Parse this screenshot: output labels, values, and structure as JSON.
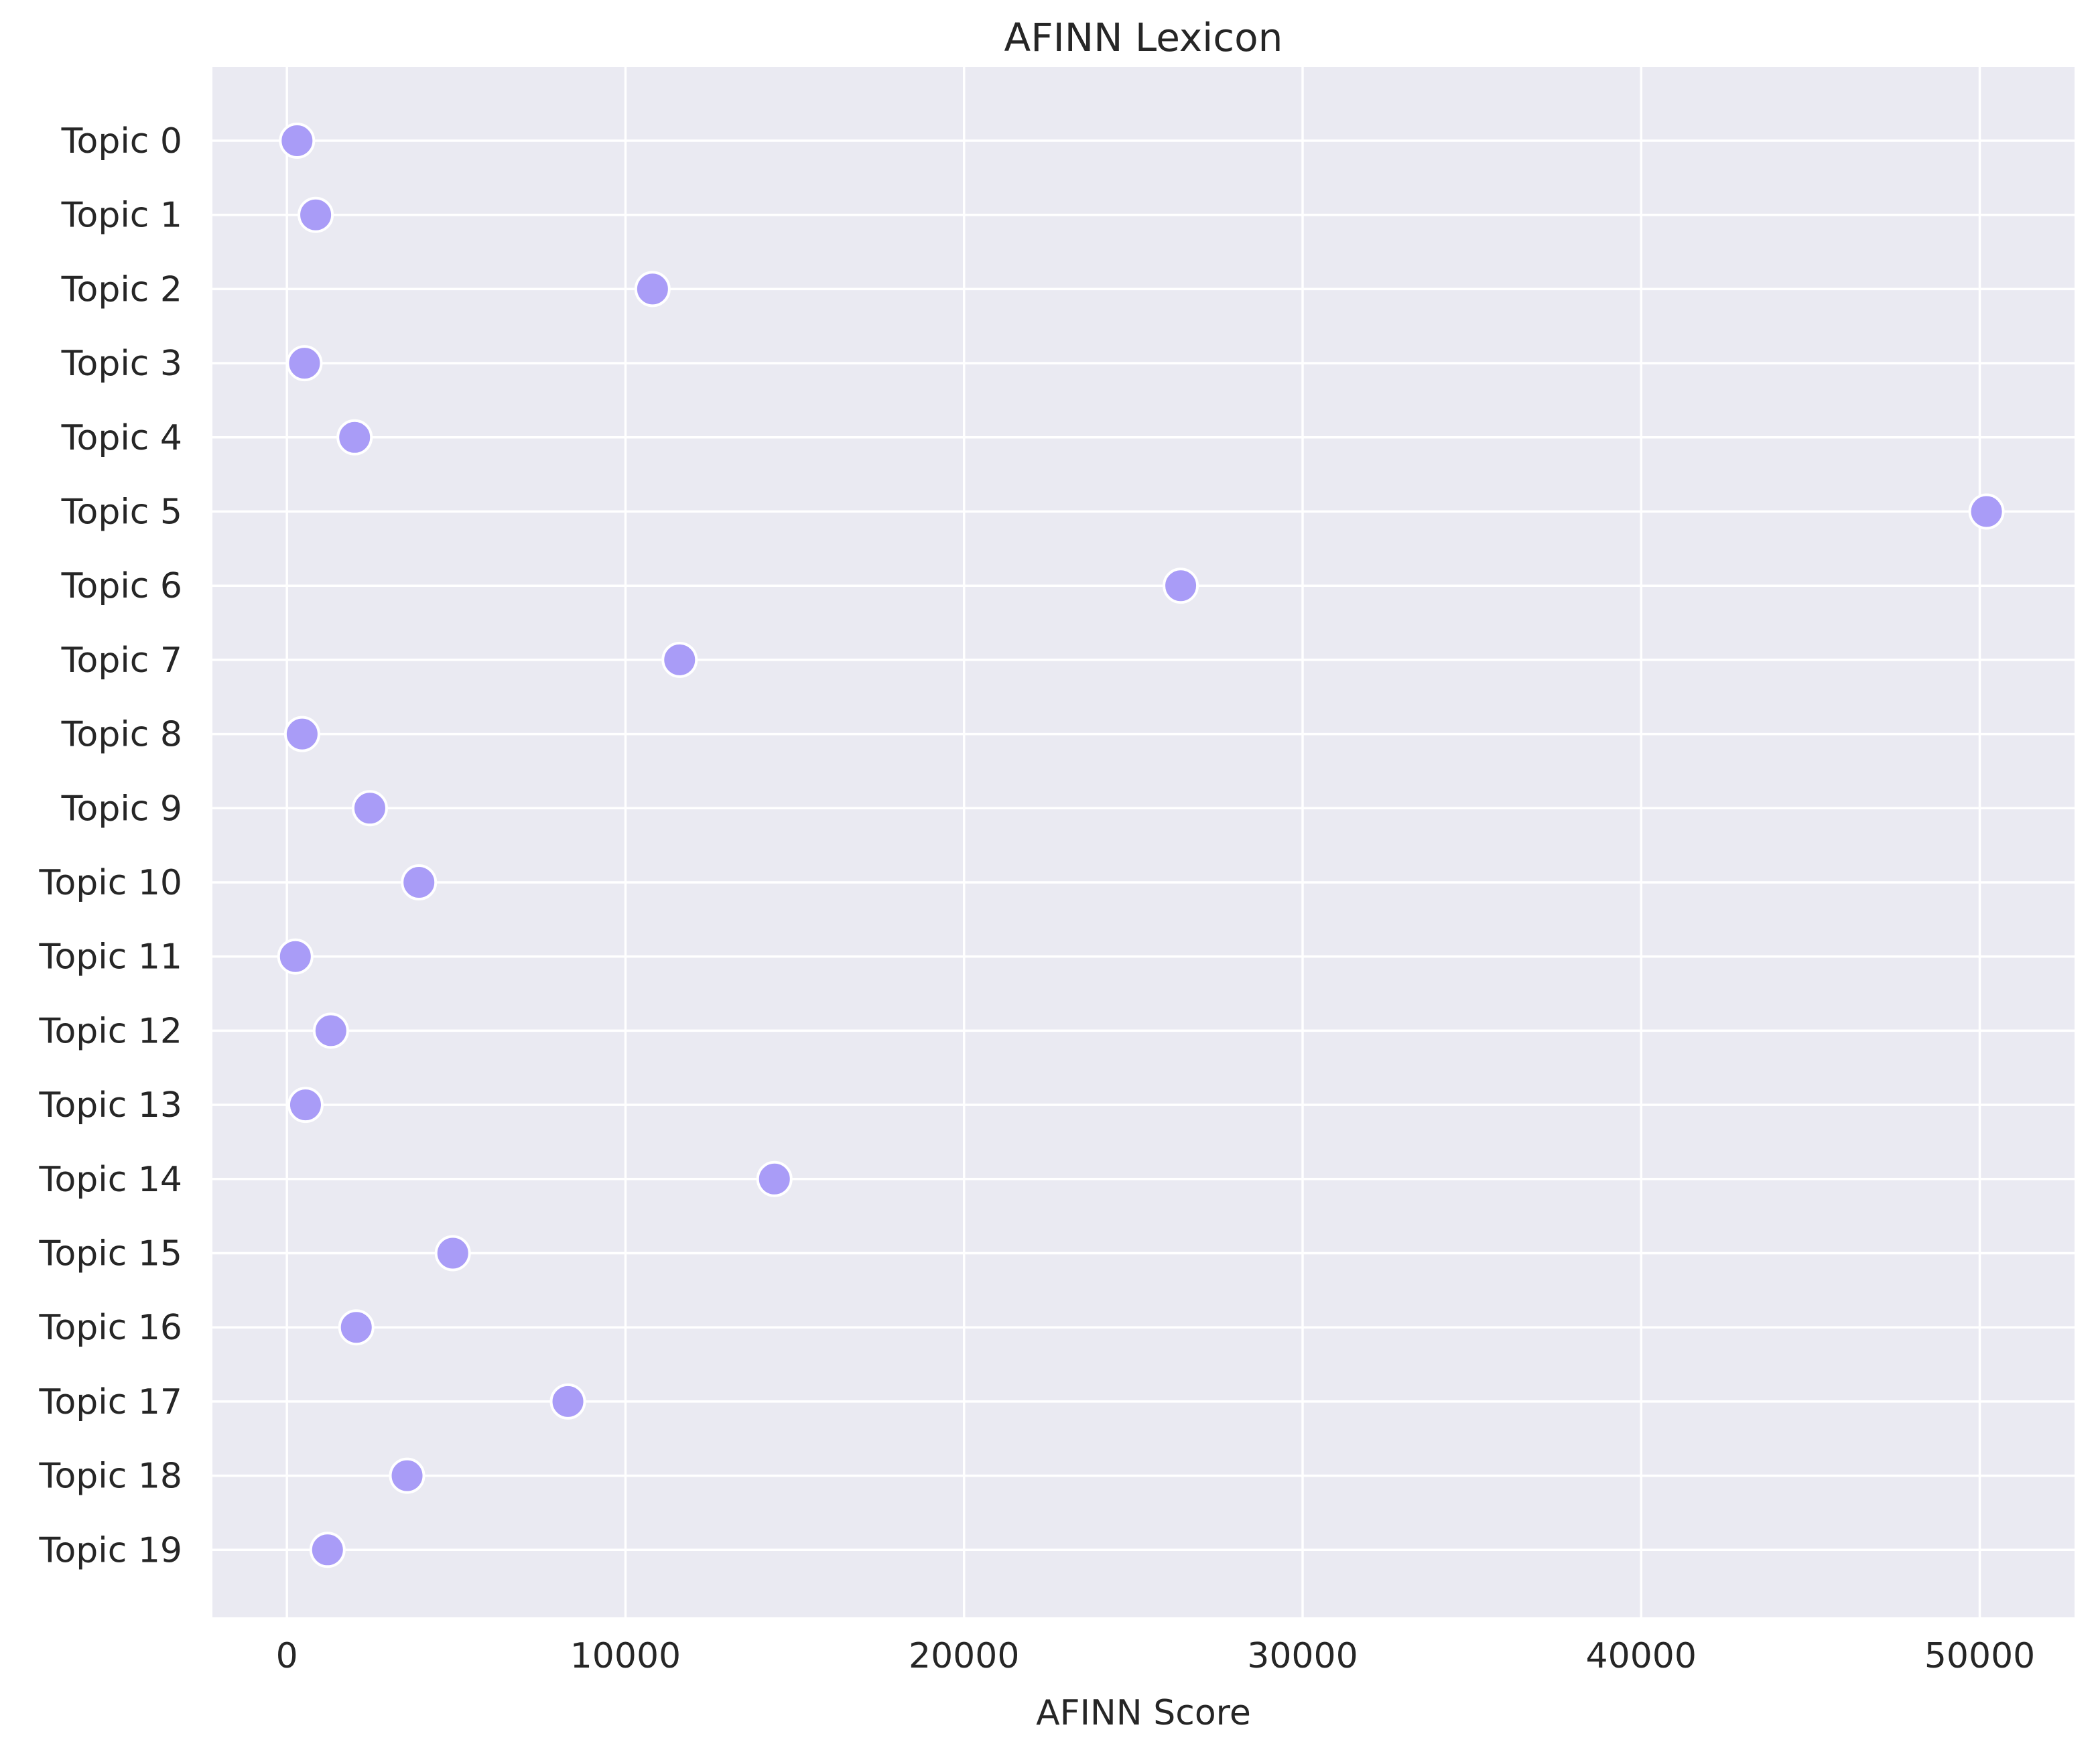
{
  "chart_data": {
    "type": "scatter",
    "title": "AFINN Lexicon",
    "xlabel": "AFINN Score",
    "ylabel": "",
    "xlim": [
      -2200,
      52800
    ],
    "xticks": [
      0,
      10000,
      20000,
      30000,
      40000,
      50000
    ],
    "categories": [
      "Topic 0",
      "Topic 1",
      "Topic 2",
      "Topic 3",
      "Topic 4",
      "Topic 5",
      "Topic 6",
      "Topic 7",
      "Topic 8",
      "Topic 9",
      "Topic 10",
      "Topic 11",
      "Topic 12",
      "Topic 13",
      "Topic 14",
      "Topic 15",
      "Topic 16",
      "Topic 17",
      "Topic 18",
      "Topic 19"
    ],
    "values": [
      300,
      850,
      10800,
      520,
      2000,
      50200,
      26400,
      11600,
      450,
      2450,
      3900,
      250,
      1300,
      550,
      14400,
      4900,
      2050,
      8300,
      3550,
      1200
    ],
    "grid": true,
    "colors": {
      "background": "#eaeaf2",
      "grid": "#ffffff",
      "marker": "#a99cf7",
      "marker_edge": "#ffffff",
      "text": "#262626"
    }
  }
}
